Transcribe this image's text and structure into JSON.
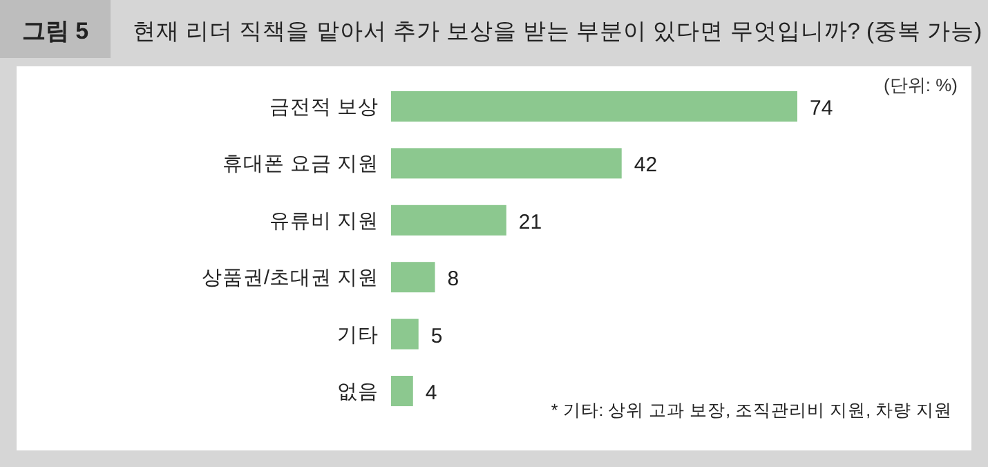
{
  "chart_data": {
    "type": "bar",
    "orientation": "horizontal",
    "title": "현재 리더 직책을 맡아서 추가 보상을 받는 부분이 있다면 무엇입니까? (중복 가능)",
    "annotations": [
      "그림 5",
      "(단위: %)",
      "* 기타: 상위 고과 보장, 조직관리비 지원, 차량 지원"
    ],
    "categories": [
      "금전적 보상",
      "휴대폰 요금 지원",
      "유류비 지원",
      "상품권/초대권 지원",
      "기타",
      "없음"
    ],
    "values": [
      74,
      42,
      21,
      8,
      5,
      4
    ],
    "color": "#8cc88f",
    "data_labels": true
  }
}
